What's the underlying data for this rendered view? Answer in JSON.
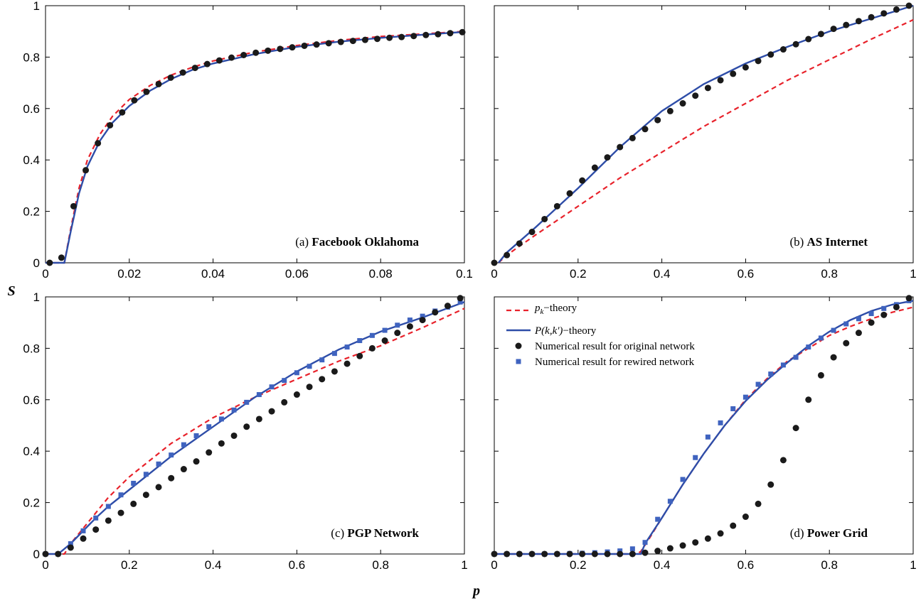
{
  "figure": {
    "xlabel": "p",
    "ylabel": "S"
  },
  "colors": {
    "pk_theory": "#e8222b",
    "pkk_theory": "#2e4da8",
    "original": "#1a1a1a",
    "rewired": "#3f63bf"
  },
  "legend": {
    "pk_theory": {
      "main": "p",
      "sub": "k",
      "suffix": "−theory"
    },
    "pkk_theory": {
      "italic": "P(k,k')",
      "suffix": "−theory"
    },
    "original": "Numerical result for original network",
    "rewired": "Numerical result for rewired network"
  },
  "chart_data": [
    {
      "type": "line",
      "panel_prefix": "(a)",
      "title": "Facebook Oklahoma",
      "xlim": [
        0,
        0.1
      ],
      "ylim": [
        0,
        1
      ],
      "xticks": [
        "0",
        "0.02",
        "0.04",
        "0.06",
        "0.08",
        "0.1"
      ],
      "yticks": [
        "0",
        "0.2",
        "0.4",
        "0.6",
        "0.8",
        "1"
      ],
      "pk_theory": {
        "x": [
          0,
          0.0045,
          0.006,
          0.008,
          0.01,
          0.013,
          0.016,
          0.02,
          0.025,
          0.03,
          0.035,
          0.04,
          0.05,
          0.06,
          0.07,
          0.08,
          0.09,
          0.1
        ],
        "y": [
          0,
          0,
          0.13,
          0.29,
          0.4,
          0.5,
          0.57,
          0.635,
          0.69,
          0.73,
          0.76,
          0.785,
          0.82,
          0.845,
          0.865,
          0.88,
          0.89,
          0.9
        ]
      },
      "pkk_theory": {
        "x": [
          0,
          0.0045,
          0.006,
          0.008,
          0.01,
          0.013,
          0.016,
          0.02,
          0.025,
          0.03,
          0.035,
          0.04,
          0.05,
          0.06,
          0.07,
          0.08,
          0.09,
          0.1
        ],
        "y": [
          0,
          0,
          0.12,
          0.27,
          0.375,
          0.475,
          0.545,
          0.61,
          0.67,
          0.715,
          0.75,
          0.775,
          0.812,
          0.84,
          0.86,
          0.875,
          0.887,
          0.898
        ]
      },
      "original": {
        "x": [
          0.001,
          0.0038,
          0.0067,
          0.0096,
          0.0125,
          0.0154,
          0.0183,
          0.0212,
          0.0241,
          0.027,
          0.0299,
          0.0328,
          0.0357,
          0.0386,
          0.0415,
          0.0444,
          0.0473,
          0.0502,
          0.0531,
          0.056,
          0.0589,
          0.0618,
          0.0647,
          0.0676,
          0.0705,
          0.0734,
          0.0763,
          0.0792,
          0.0821,
          0.085,
          0.0879,
          0.0908,
          0.0937,
          0.0966,
          0.0995
        ],
        "y": [
          0,
          0.02,
          0.22,
          0.36,
          0.465,
          0.535,
          0.585,
          0.632,
          0.665,
          0.695,
          0.72,
          0.74,
          0.758,
          0.773,
          0.787,
          0.798,
          0.808,
          0.817,
          0.825,
          0.832,
          0.838,
          0.844,
          0.849,
          0.854,
          0.859,
          0.863,
          0.867,
          0.871,
          0.875,
          0.878,
          0.882,
          0.886,
          0.889,
          0.893,
          0.897
        ]
      }
    },
    {
      "type": "line",
      "panel_prefix": "(b)",
      "title": "AS Internet",
      "xlim": [
        0,
        1
      ],
      "ylim": [
        0,
        1
      ],
      "xticks": [
        "0",
        "0.2",
        "0.4",
        "0.6",
        "0.8",
        "1"
      ],
      "yticks": [],
      "pk_theory": {
        "x": [
          0.01,
          0.03,
          0.1,
          0.2,
          0.3,
          0.4,
          0.5,
          0.6,
          0.7,
          0.8,
          0.9,
          1.0
        ],
        "y": [
          0,
          0.03,
          0.11,
          0.22,
          0.33,
          0.43,
          0.53,
          0.62,
          0.71,
          0.79,
          0.87,
          0.945
        ]
      },
      "pkk_theory": {
        "x": [
          0.01,
          0.03,
          0.1,
          0.2,
          0.3,
          0.4,
          0.5,
          0.6,
          0.7,
          0.8,
          0.9,
          1.0
        ],
        "y": [
          0,
          0.04,
          0.14,
          0.29,
          0.45,
          0.59,
          0.695,
          0.775,
          0.84,
          0.9,
          0.95,
          1.0
        ]
      },
      "original": {
        "x": [
          0,
          0.03,
          0.06,
          0.09,
          0.12,
          0.15,
          0.18,
          0.21,
          0.24,
          0.27,
          0.3,
          0.33,
          0.36,
          0.39,
          0.42,
          0.45,
          0.48,
          0.51,
          0.54,
          0.57,
          0.6,
          0.63,
          0.66,
          0.69,
          0.72,
          0.75,
          0.78,
          0.81,
          0.84,
          0.87,
          0.9,
          0.93,
          0.96,
          0.99
        ],
        "y": [
          0,
          0.03,
          0.075,
          0.12,
          0.17,
          0.22,
          0.27,
          0.32,
          0.37,
          0.41,
          0.45,
          0.485,
          0.52,
          0.555,
          0.59,
          0.62,
          0.65,
          0.68,
          0.71,
          0.735,
          0.76,
          0.785,
          0.81,
          0.83,
          0.85,
          0.87,
          0.89,
          0.91,
          0.925,
          0.94,
          0.955,
          0.97,
          0.985,
          1.0
        ]
      }
    },
    {
      "type": "line",
      "panel_prefix": "(c)",
      "title": "PGP Network",
      "xlim": [
        0,
        1
      ],
      "ylim": [
        0,
        1
      ],
      "xticks": [
        "0",
        "0.2",
        "0.4",
        "0.6",
        "0.8",
        "1"
      ],
      "yticks": [
        "0",
        "0.2",
        "0.4",
        "0.6",
        "0.8",
        "1"
      ],
      "pk_theory": {
        "x": [
          0,
          0.045,
          0.06,
          0.1,
          0.15,
          0.2,
          0.3,
          0.4,
          0.5,
          0.6,
          0.7,
          0.8,
          0.9,
          1.0
        ],
        "y": [
          0,
          0,
          0.04,
          0.12,
          0.22,
          0.3,
          0.43,
          0.53,
          0.61,
          0.68,
          0.75,
          0.81,
          0.88,
          0.955
        ]
      },
      "pkk_theory": {
        "x": [
          0,
          0.03,
          0.06,
          0.09,
          0.12,
          0.15,
          0.2,
          0.3,
          0.4,
          0.5,
          0.6,
          0.7,
          0.8,
          0.9,
          1.0
        ],
        "y": [
          0,
          0,
          0.04,
          0.09,
          0.14,
          0.185,
          0.25,
          0.38,
          0.495,
          0.61,
          0.71,
          0.795,
          0.865,
          0.92,
          0.98
        ]
      },
      "rewired": {
        "x": [
          0,
          0.03,
          0.06,
          0.09,
          0.12,
          0.15,
          0.18,
          0.21,
          0.24,
          0.27,
          0.3,
          0.33,
          0.36,
          0.39,
          0.42,
          0.45,
          0.48,
          0.51,
          0.54,
          0.57,
          0.6,
          0.63,
          0.66,
          0.69,
          0.72,
          0.75,
          0.78,
          0.81,
          0.84,
          0.87,
          0.9,
          0.93,
          0.96,
          0.99
        ],
        "y": [
          0,
          0,
          0.04,
          0.09,
          0.14,
          0.185,
          0.23,
          0.275,
          0.31,
          0.35,
          0.385,
          0.425,
          0.46,
          0.495,
          0.525,
          0.56,
          0.59,
          0.62,
          0.65,
          0.675,
          0.705,
          0.73,
          0.755,
          0.78,
          0.805,
          0.83,
          0.85,
          0.87,
          0.89,
          0.91,
          0.925,
          0.945,
          0.96,
          0.98
        ]
      },
      "original": {
        "x": [
          0,
          0.03,
          0.06,
          0.09,
          0.12,
          0.15,
          0.18,
          0.21,
          0.24,
          0.27,
          0.3,
          0.33,
          0.36,
          0.39,
          0.42,
          0.45,
          0.48,
          0.51,
          0.54,
          0.57,
          0.6,
          0.63,
          0.66,
          0.69,
          0.72,
          0.75,
          0.78,
          0.81,
          0.84,
          0.87,
          0.9,
          0.93,
          0.96,
          0.99
        ],
        "y": [
          0,
          0,
          0.025,
          0.06,
          0.095,
          0.13,
          0.16,
          0.195,
          0.23,
          0.26,
          0.295,
          0.33,
          0.36,
          0.395,
          0.43,
          0.46,
          0.495,
          0.525,
          0.555,
          0.59,
          0.62,
          0.65,
          0.68,
          0.71,
          0.74,
          0.77,
          0.8,
          0.83,
          0.86,
          0.885,
          0.91,
          0.94,
          0.965,
          0.995
        ]
      }
    },
    {
      "type": "line",
      "panel_prefix": "(d)",
      "title": "Power Grid",
      "xlim": [
        0,
        1
      ],
      "ylim": [
        0,
        1
      ],
      "xticks": [
        "0",
        "0.2",
        "0.4",
        "0.6",
        "0.8",
        "1"
      ],
      "yticks": [],
      "legend_location": "top-left",
      "pk_theory": {
        "x": [
          0,
          0.34,
          0.35,
          0.37,
          0.4,
          0.45,
          0.5,
          0.55,
          0.6,
          0.65,
          0.7,
          0.75,
          0.8,
          0.85,
          0.9,
          0.95,
          1.0
        ],
        "y": [
          0,
          0,
          0.01,
          0.06,
          0.14,
          0.27,
          0.39,
          0.5,
          0.6,
          0.68,
          0.75,
          0.8,
          0.85,
          0.885,
          0.915,
          0.94,
          0.96
        ]
      },
      "pkk_theory": {
        "x": [
          0,
          0.35,
          0.36,
          0.38,
          0.4,
          0.45,
          0.5,
          0.55,
          0.6,
          0.65,
          0.7,
          0.75,
          0.8,
          0.85,
          0.9,
          0.95,
          1.0
        ],
        "y": [
          0,
          0,
          0.04,
          0.09,
          0.14,
          0.27,
          0.39,
          0.5,
          0.595,
          0.675,
          0.745,
          0.81,
          0.865,
          0.91,
          0.945,
          0.97,
          0.985
        ]
      },
      "rewired": {
        "x": [
          0,
          0.03,
          0.06,
          0.09,
          0.12,
          0.15,
          0.18,
          0.21,
          0.24,
          0.27,
          0.3,
          0.33,
          0.36,
          0.39,
          0.42,
          0.45,
          0.48,
          0.51,
          0.54,
          0.57,
          0.6,
          0.63,
          0.66,
          0.69,
          0.72,
          0.75,
          0.78,
          0.81,
          0.84,
          0.87,
          0.9,
          0.93,
          0.96,
          0.99
        ],
        "y": [
          0,
          0,
          0,
          0,
          0,
          0,
          0.002,
          0.003,
          0.005,
          0.008,
          0.012,
          0.02,
          0.045,
          0.135,
          0.205,
          0.29,
          0.375,
          0.455,
          0.51,
          0.565,
          0.61,
          0.66,
          0.7,
          0.735,
          0.765,
          0.805,
          0.84,
          0.87,
          0.895,
          0.915,
          0.935,
          0.955,
          0.97,
          0.985
        ]
      },
      "original": {
        "x": [
          0,
          0.03,
          0.06,
          0.09,
          0.12,
          0.15,
          0.18,
          0.21,
          0.24,
          0.27,
          0.3,
          0.33,
          0.36,
          0.39,
          0.42,
          0.45,
          0.48,
          0.51,
          0.54,
          0.57,
          0.6,
          0.63,
          0.66,
          0.69,
          0.72,
          0.75,
          0.78,
          0.81,
          0.84,
          0.87,
          0.9,
          0.93,
          0.96,
          0.99
        ],
        "y": [
          0,
          0,
          0,
          0,
          0,
          0,
          0,
          0,
          0,
          0,
          0,
          0,
          0.005,
          0.012,
          0.022,
          0.033,
          0.045,
          0.06,
          0.08,
          0.11,
          0.145,
          0.195,
          0.27,
          0.365,
          0.49,
          0.6,
          0.695,
          0.765,
          0.82,
          0.86,
          0.9,
          0.93,
          0.96,
          0.995
        ]
      }
    }
  ]
}
